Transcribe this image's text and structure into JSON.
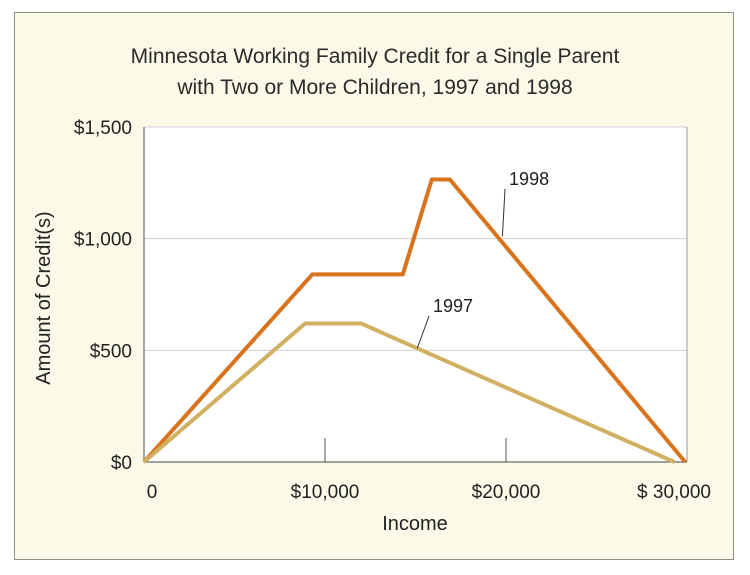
{
  "chart_data": {
    "type": "line",
    "title": [
      "Minnesota Working Family Credit for a Single Parent",
      "with Two or More Children, 1997 and 1998"
    ],
    "xlabel": "Income",
    "ylabel": "Amount of Credit(s)",
    "xlim": [
      0,
      30000
    ],
    "ylim": [
      0,
      1500
    ],
    "x_ticks": [
      {
        "value": 0,
        "label": "0"
      },
      {
        "value": 10000,
        "label": "$10,000"
      },
      {
        "value": 20000,
        "label": "$20,000"
      },
      {
        "value": 30000,
        "label": "$ 30,000"
      }
    ],
    "y_ticks": [
      {
        "value": 0,
        "label": "$0"
      },
      {
        "value": 500,
        "label": "$500"
      },
      {
        "value": 1000,
        "label": "$1,000"
      },
      {
        "value": 1500,
        "label": "$1,500"
      }
    ],
    "grid": true,
    "series": [
      {
        "name": "1998",
        "color": "#d9731d",
        "x": [
          0,
          9300,
          14300,
          15900,
          16900,
          29900
        ],
        "y": [
          0,
          840,
          840,
          1265,
          1265,
          0
        ],
        "label_at": {
          "x": 19800,
          "y": 1010
        },
        "label_pos": {
          "x": 20500,
          "y": 1250
        }
      },
      {
        "name": "1997",
        "color": "#d2b062",
        "x": [
          0,
          8900,
          12000,
          29300
        ],
        "y": [
          0,
          620,
          620,
          0
        ],
        "label_at": {
          "x": 15100,
          "y": 510
        },
        "label_pos": {
          "x": 16300,
          "y": 680
        }
      }
    ]
  }
}
